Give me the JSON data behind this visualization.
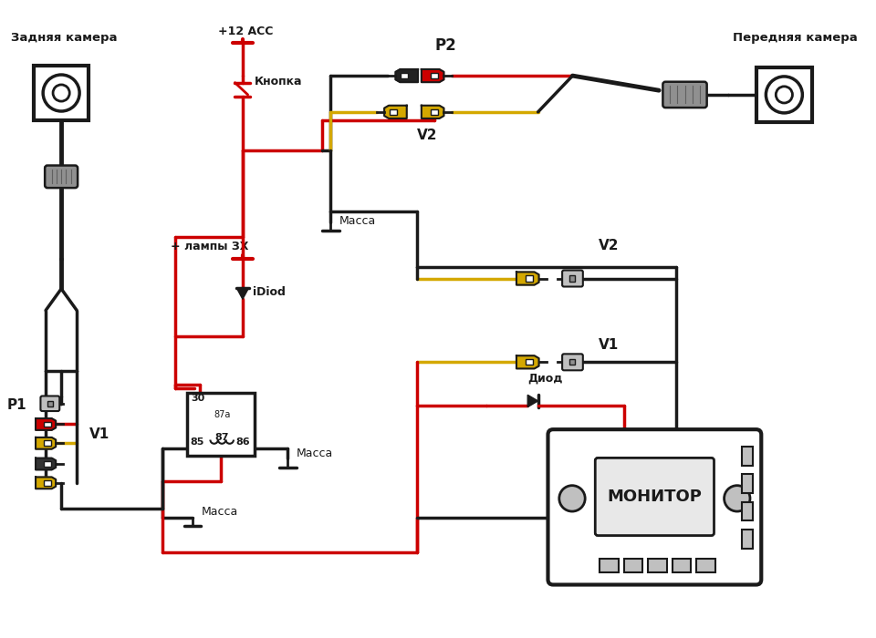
{
  "bg": "#ffffff",
  "blk": "#1a1a1a",
  "red": "#cc0000",
  "yel": "#d4a800",
  "gray": "#909090",
  "lgray": "#c0c0c0",
  "dgray": "#606060",
  "tc": "#1a1a1a",
  "lw_main": 2.5,
  "lw_thick": 3.5,
  "labels": {
    "rear_cam": "Задняя камера",
    "front_cam": "Передняя камера",
    "monitor": "МОНИТОР",
    "p1": "P1",
    "p2": "P2",
    "v1": "V1",
    "v2": "V2",
    "acc": "+12 ACC",
    "knopka": "Кнопка",
    "lampy": "+ лампы ЗХ",
    "idiod": "iDiod",
    "massa": "Масса",
    "diod": "Диод",
    "r30": "30",
    "r85": "85",
    "r86": "86",
    "r87a": "87a",
    "r87": "87"
  }
}
